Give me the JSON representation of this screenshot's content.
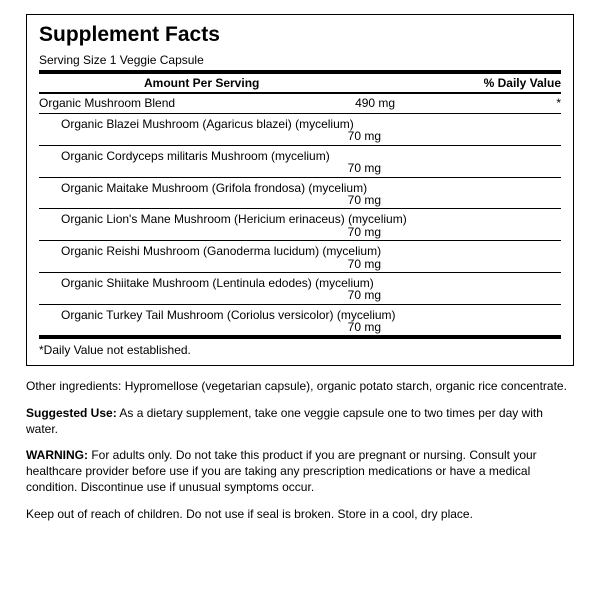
{
  "title": "Supplement Facts",
  "serving": "Serving Size 1 Veggie Capsule",
  "headers": {
    "amount": "Amount Per Serving",
    "dv": "% Daily Value"
  },
  "blend": {
    "name": "Organic Mushroom Blend",
    "amount": "490 mg",
    "dv": "*"
  },
  "items": [
    {
      "name": "Organic Blazei Mushroom (Agaricus blazei) (mycelium)",
      "amount": "70 mg"
    },
    {
      "name": "Organic Cordyceps militaris Mushroom (mycelium)",
      "amount": "70 mg"
    },
    {
      "name": "Organic Maitake Mushroom (Grifola frondosa) (mycelium)",
      "amount": "70 mg"
    },
    {
      "name": "Organic Lion's Mane Mushroom (Hericium erinaceus) (mycelium)",
      "amount": "70 mg"
    },
    {
      "name": "Organic Reishi Mushroom (Ganoderma lucidum) (mycelium)",
      "amount": "70 mg"
    },
    {
      "name": "Organic Shiitake Mushroom (Lentinula edodes) (mycelium)",
      "amount": "70 mg"
    },
    {
      "name": "Organic Turkey Tail Mushroom (Coriolus versicolor) (mycelium)",
      "amount": "70 mg"
    }
  ],
  "dvNote": "*Daily Value not established.",
  "otherLabel": "Other ingredients: ",
  "otherText": "Hypromellose (vegetarian capsule), organic potato starch, organic rice concentrate.",
  "useLabel": "Suggested Use:",
  "useText": " As a dietary supplement, take one veggie capsule one to two times per day with water.",
  "warnLabel": "WARNING:",
  "warnText": " For adults only. Do not take this product if you are pregnant or nursing. Consult your healthcare provider before use if you are taking any prescription medications or have a medical condition. Discontinue use if unusual symptoms occur.",
  "storage": "Keep out of reach of children. Do not use if seal is broken. Store in a cool, dry place."
}
